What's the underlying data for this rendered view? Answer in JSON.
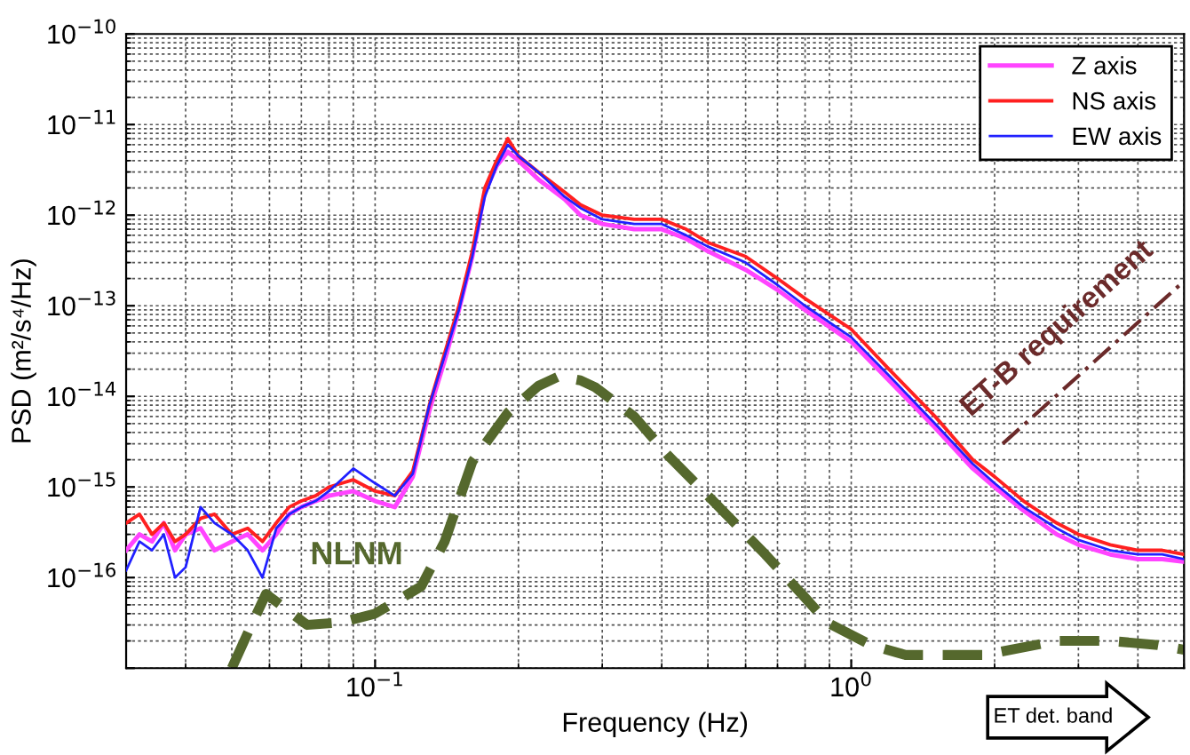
{
  "chart_data": {
    "type": "line",
    "xlabel": "Frequency (Hz)",
    "ylabel": "PSD (m²/s⁴/Hz)",
    "log": "xy",
    "xlim": [
      0.03,
      5
    ],
    "ylim": [
      1e-17,
      1e-10
    ],
    "xticks": [
      {
        "value": 0.1,
        "label": "10$^{−1}$"
      },
      {
        "value": 1,
        "label": "10$^{0}$"
      }
    ],
    "yticks": [
      {
        "value": 1e-17,
        "label": null
      },
      {
        "value": 1e-16,
        "label": "10$^{−16}$"
      },
      {
        "value": 1e-15,
        "label": "10$^{−15}$"
      },
      {
        "value": 1e-14,
        "label": "10$^{−14}$"
      },
      {
        "value": 1e-13,
        "label": "10$^{−13}$"
      },
      {
        "value": 1e-12,
        "label": "10$^{−12}$"
      },
      {
        "value": 1e-11,
        "label": "10$^{−11}$"
      },
      {
        "value": 1e-10,
        "label": "10$^{−10}$"
      }
    ],
    "grid": true,
    "legend": "top right",
    "line_style": "solid",
    "marker": "none",
    "annotations": [
      "ET det. band"
    ],
    "series": [
      {
        "name": "Z axis",
        "color": "#ff44ff",
        "x": [
          0.03,
          0.032,
          0.034,
          0.036,
          0.038,
          0.04,
          0.043,
          0.046,
          0.05,
          0.054,
          0.058,
          0.062,
          0.066,
          0.07,
          0.075,
          0.08,
          0.09,
          0.1,
          0.11,
          0.12,
          0.13,
          0.14,
          0.15,
          0.16,
          0.17,
          0.18,
          0.19,
          0.2,
          0.22,
          0.25,
          0.27,
          0.3,
          0.35,
          0.4,
          0.45,
          0.5,
          0.6,
          0.7,
          0.8,
          1,
          1.2,
          1.5,
          1.8,
          2,
          2.3,
          2.7,
          3,
          3.5,
          4,
          4.5,
          5
        ],
        "values": [
          2e-16,
          3e-16,
          2.5e-16,
          4e-16,
          2e-16,
          3e-16,
          3.5e-16,
          2e-16,
          2.5e-16,
          3e-16,
          2e-16,
          3e-16,
          5e-16,
          6e-16,
          7e-16,
          8e-16,
          9e-16,
          7e-16,
          6e-16,
          1.3e-15,
          7e-15,
          2.5e-14,
          9e-14,
          3.5e-13,
          1.8e-12,
          3.5e-12,
          5e-12,
          4e-12,
          2.5e-12,
          1.5e-12,
          1e-12,
          8e-13,
          7e-13,
          7e-13,
          5.5e-13,
          4e-13,
          2.5e-13,
          1.5e-13,
          9e-14,
          4e-14,
          1.5e-14,
          4.5e-15,
          1.6e-15,
          1e-15,
          5.5e-16,
          3e-16,
          2.3e-16,
          1.8e-16,
          1.6e-16,
          1.6e-16,
          1.5e-16
        ]
      },
      {
        "name": "NS axis",
        "color": "#ff2020",
        "x": [
          0.03,
          0.032,
          0.034,
          0.036,
          0.038,
          0.04,
          0.043,
          0.046,
          0.05,
          0.054,
          0.058,
          0.062,
          0.066,
          0.07,
          0.075,
          0.08,
          0.09,
          0.1,
          0.11,
          0.12,
          0.13,
          0.14,
          0.15,
          0.16,
          0.17,
          0.18,
          0.19,
          0.2,
          0.22,
          0.25,
          0.27,
          0.3,
          0.35,
          0.4,
          0.45,
          0.5,
          0.6,
          0.7,
          0.8,
          1,
          1.2,
          1.5,
          1.8,
          2,
          2.3,
          2.7,
          3,
          3.5,
          4,
          4.5,
          5
        ],
        "values": [
          4e-16,
          5e-16,
          3e-16,
          4e-16,
          2.5e-16,
          3e-16,
          4.5e-16,
          5e-16,
          3e-16,
          3.5e-16,
          2.5e-16,
          4e-16,
          6e-16,
          7e-16,
          8e-16,
          1e-15,
          1.2e-15,
          9e-16,
          8e-16,
          1.5e-15,
          8e-15,
          3e-14,
          1e-13,
          4e-13,
          2e-12,
          4e-12,
          7e-12,
          4.5e-12,
          3e-12,
          1.8e-12,
          1.3e-12,
          1e-12,
          9e-13,
          9e-13,
          7e-13,
          5e-13,
          3.5e-13,
          2e-13,
          1.2e-13,
          5.5e-14,
          2e-14,
          6e-15,
          2e-15,
          1.3e-15,
          7e-16,
          4e-16,
          3e-16,
          2.3e-16,
          2e-16,
          2e-16,
          1.8e-16
        ]
      },
      {
        "name": "EW axis",
        "color": "#2020ff",
        "x": [
          0.03,
          0.032,
          0.034,
          0.036,
          0.038,
          0.04,
          0.043,
          0.046,
          0.05,
          0.054,
          0.058,
          0.062,
          0.066,
          0.07,
          0.075,
          0.08,
          0.09,
          0.1,
          0.11,
          0.12,
          0.13,
          0.14,
          0.15,
          0.16,
          0.17,
          0.18,
          0.19,
          0.2,
          0.22,
          0.25,
          0.27,
          0.3,
          0.35,
          0.4,
          0.45,
          0.5,
          0.6,
          0.7,
          0.8,
          1,
          1.2,
          1.5,
          1.8,
          2,
          2.3,
          2.7,
          3,
          3.5,
          4,
          4.5,
          5
        ],
        "values": [
          1.2e-16,
          2.5e-16,
          2e-16,
          3e-16,
          1e-16,
          1.3e-16,
          6e-16,
          4e-16,
          3e-16,
          2e-16,
          1e-16,
          3.5e-16,
          5e-16,
          6e-16,
          7e-16,
          9e-16,
          1.6e-15,
          1.1e-15,
          8e-16,
          1.4e-15,
          8e-15,
          2.8e-14,
          9e-14,
          3.5e-13,
          1.6e-12,
          3.5e-12,
          6e-12,
          4.5e-12,
          3e-12,
          1.6e-12,
          1.2e-12,
          9e-13,
          8e-13,
          8e-13,
          6e-13,
          4.5e-13,
          3e-13,
          1.7e-13,
          1e-13,
          4.5e-14,
          1.7e-14,
          5e-15,
          1.8e-15,
          1.1e-15,
          6e-16,
          3.5e-16,
          2.6e-16,
          2e-16,
          1.8e-16,
          1.8e-16,
          1.6e-16
        ]
      },
      {
        "name": "NLNM",
        "color": "#55682d",
        "line_style": "dashed",
        "x": [
          0.05,
          0.055,
          0.059,
          0.065,
          0.072,
          0.085,
          0.1,
          0.125,
          0.14,
          0.16,
          0.19,
          0.22,
          0.243,
          0.27,
          0.29,
          0.35,
          0.41,
          0.5,
          0.66,
          0.8,
          0.89,
          1.1,
          1.3,
          1.9,
          2.7,
          3.5,
          4.4,
          5
        ],
        "values": [
          1e-17,
          3e-17,
          6.6e-17,
          4.5e-17,
          3e-17,
          3.2e-17,
          4e-17,
          8e-17,
          2.5e-16,
          1.9e-15,
          6.6e-15,
          1.3e-14,
          1.66e-14,
          1.5e-14,
          1.26e-14,
          6e-15,
          2.3e-15,
          8e-16,
          1.8e-16,
          6e-17,
          3.2e-17,
          1.8e-17,
          1.4e-17,
          1.4e-17,
          2e-17,
          2e-17,
          1.8e-17,
          1.6e-17
        ]
      },
      {
        "name": "ET-B requirement",
        "color": "#6b2a2a",
        "line_style": "dashed",
        "x": [
          2.08,
          4.9
        ],
        "values": [
          3e-15,
          1.7e-13
        ]
      }
    ]
  }
}
